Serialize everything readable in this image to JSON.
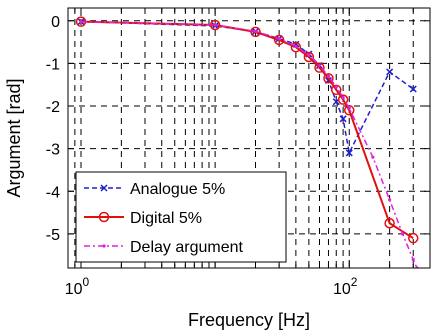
{
  "chart_data": {
    "type": "line",
    "xscale": "log",
    "xlim": [
      0.8,
      400
    ],
    "ylim": [
      -5.8,
      0.3
    ],
    "xlabel": "Frequency [Hz]",
    "ylabel": "Argument [rad]",
    "grid": true,
    "legend_position": "bottom-left",
    "xticks": [
      {
        "value": 1,
        "base": "10",
        "exp": "0"
      },
      {
        "value": 100,
        "base": "10",
        "exp": "2"
      }
    ],
    "yticks": [
      {
        "value": 0,
        "label": "0"
      },
      {
        "value": -1,
        "label": "-1"
      },
      {
        "value": -2,
        "label": "-2"
      },
      {
        "value": -3,
        "label": "-3"
      },
      {
        "value": -4,
        "label": "-4"
      },
      {
        "value": -5,
        "label": "-5"
      }
    ],
    "series": [
      {
        "name": "Analogue 5%",
        "color": "#1f1fd0",
        "style": "dashed",
        "marker": "x",
        "x": [
          1,
          10,
          20,
          30,
          40,
          50,
          60,
          70,
          80,
          90,
          100,
          200,
          300
        ],
        "y": [
          -0.02,
          -0.12,
          -0.25,
          -0.42,
          -0.55,
          -0.78,
          -1.05,
          -1.4,
          -1.9,
          -2.3,
          -3.1,
          -1.2,
          -1.6
        ]
      },
      {
        "name": "Digital 5%",
        "color": "#e01010",
        "style": "solid",
        "marker": "o",
        "x": [
          1,
          10,
          20,
          30,
          40,
          50,
          60,
          70,
          80,
          90,
          100,
          200,
          300
        ],
        "y": [
          -0.02,
          -0.1,
          -0.26,
          -0.45,
          -0.62,
          -0.85,
          -1.1,
          -1.35,
          -1.62,
          -1.85,
          -2.1,
          -4.75,
          -5.1
        ]
      },
      {
        "name": "Delay argument",
        "color": "#e020e0",
        "style": "dashdot",
        "marker": "dot",
        "x": [
          1,
          10,
          20,
          30,
          40,
          50,
          60,
          70,
          80,
          90,
          100,
          150,
          200,
          250,
          300,
          320
        ],
        "y": [
          -0.02,
          -0.1,
          -0.25,
          -0.42,
          -0.6,
          -0.8,
          -1.05,
          -1.3,
          -1.55,
          -1.8,
          -2.05,
          -3.2,
          -4.2,
          -5.0,
          -5.6,
          -5.8
        ]
      }
    ]
  }
}
